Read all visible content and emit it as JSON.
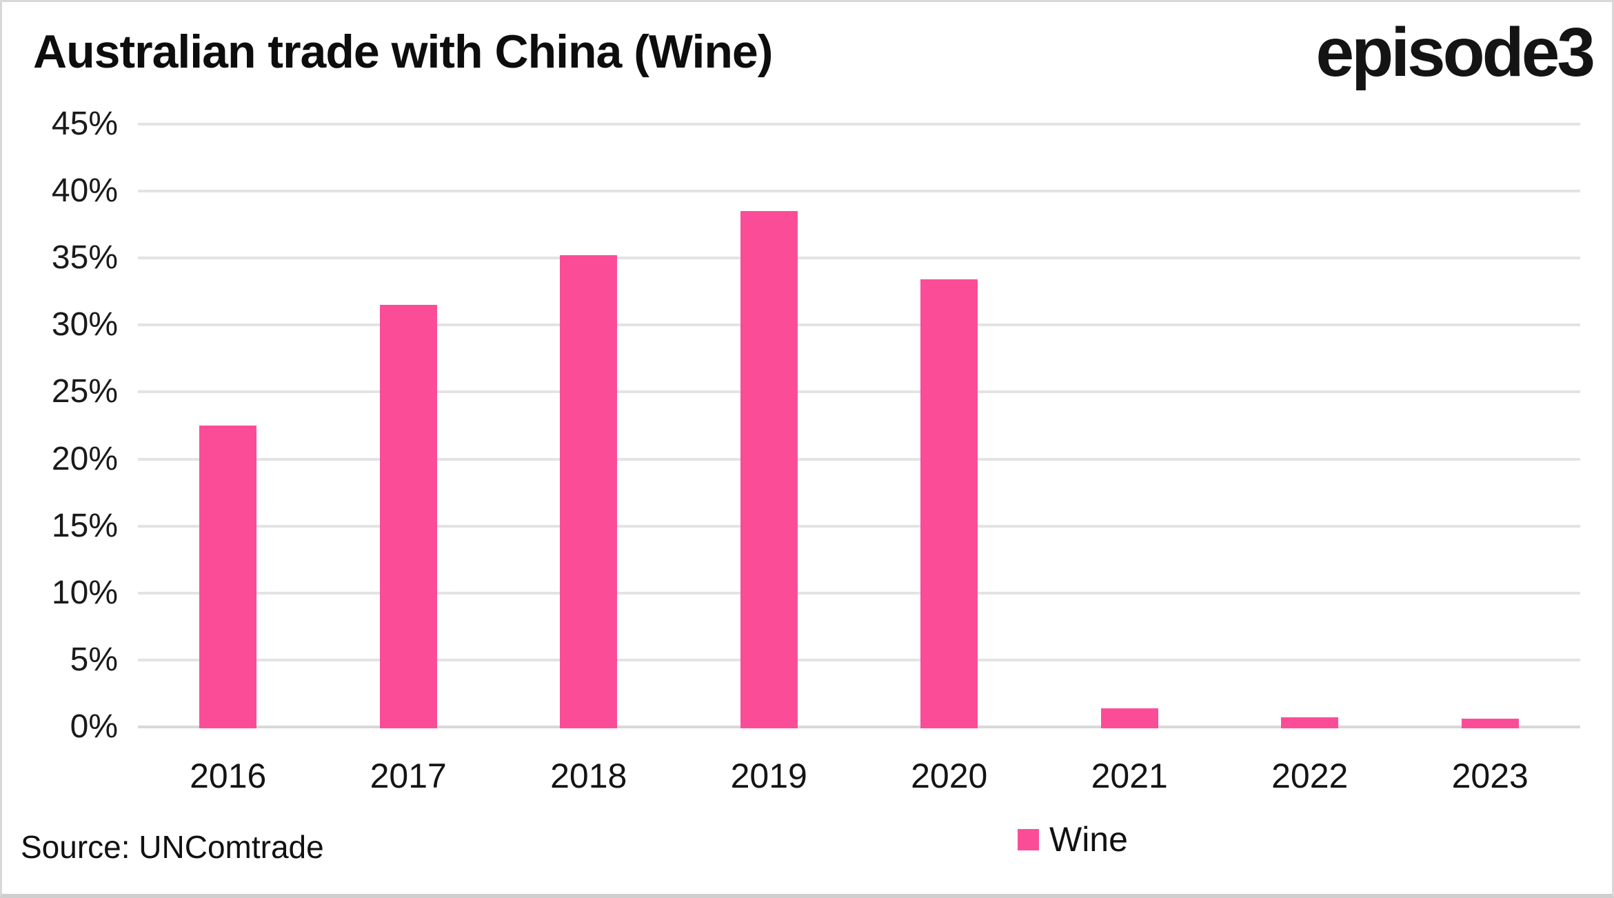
{
  "header": {
    "title": "Australian trade with China (Wine)",
    "logo": "episode3"
  },
  "footer": {
    "source": "Source: UNComtrade"
  },
  "legend": {
    "items": [
      {
        "label": "Wine",
        "color": "#FB4D97"
      }
    ]
  },
  "colors": {
    "bar": "#FB4D97",
    "gridline": "#E3E3E3",
    "axis_line": "#D8D8D8",
    "background": "#FFFFFF",
    "text": "#111111"
  },
  "chart_data": {
    "type": "bar",
    "title": "Australian trade with China (Wine)",
    "categories": [
      "2016",
      "2017",
      "2018",
      "2019",
      "2020",
      "2021",
      "2022",
      "2023"
    ],
    "series": [
      {
        "name": "Wine",
        "color": "#FB4D97",
        "values": [
          22.5,
          31.5,
          35.2,
          38.5,
          33.4,
          1.4,
          0.7,
          0.6
        ]
      }
    ],
    "xlabel": "",
    "ylabel": "",
    "ylim": [
      0,
      45
    ],
    "y_tick_step": 5,
    "y_tick_labels": [
      "0%",
      "5%",
      "10%",
      "15%",
      "20%",
      "25%",
      "30%",
      "35%",
      "40%",
      "45%"
    ],
    "grid": true,
    "legend_position": "bottom"
  }
}
